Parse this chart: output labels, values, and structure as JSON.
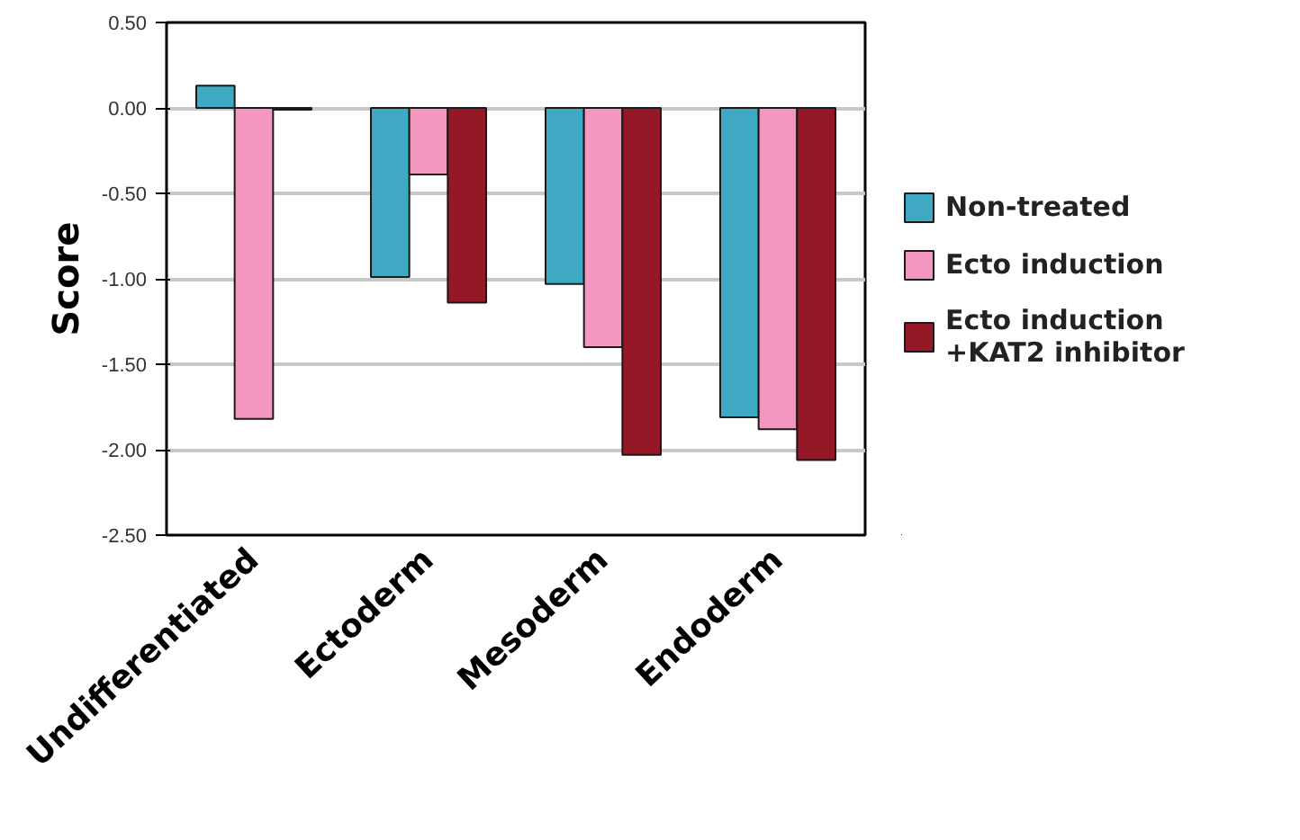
{
  "chart_data": {
    "type": "bar",
    "ylabel": "Score",
    "categories": [
      "Undifferentiated",
      "Ectoderm",
      "Mesoderm",
      "Endoderm"
    ],
    "series": [
      {
        "name": "Non-treated",
        "color": "#3fa9c4",
        "values": [
          0.13,
          -0.99,
          -1.03,
          -1.81
        ]
      },
      {
        "name": "Ecto induction",
        "color": "#f497c0",
        "values": [
          -1.82,
          -0.39,
          -1.4,
          -1.88
        ]
      },
      {
        "name": "Ecto induction +KAT2 inhibitor",
        "color": "#951826",
        "values": [
          -0.01,
          -1.14,
          -2.03,
          -2.06
        ]
      }
    ],
    "ylim": [
      -2.5,
      0.5
    ],
    "yticks": [
      {
        "value": 0.5,
        "label": "0.50"
      },
      {
        "value": 0,
        "label": "0.00"
      },
      {
        "value": -0.5,
        "label": "-0.50"
      },
      {
        "value": -1,
        "label": "-1.00"
      },
      {
        "value": -1.5,
        "label": "-1.50"
      },
      {
        "value": -2,
        "label": "-2.00"
      },
      {
        "value": -2.5,
        "label": "-2.50"
      }
    ],
    "grid": "y",
    "legend": "right"
  }
}
